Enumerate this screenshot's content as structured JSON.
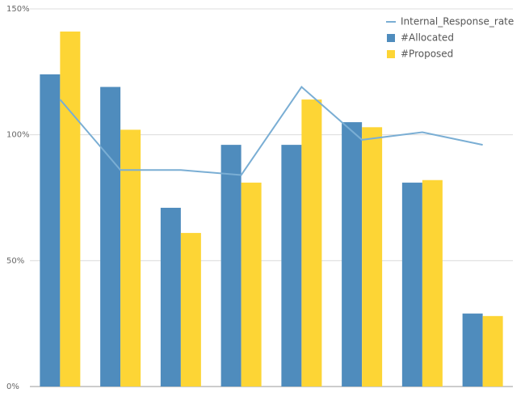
{
  "chart_data": {
    "type": "bar",
    "categories": [
      null,
      null,
      null,
      null,
      null,
      null,
      null,
      null
    ],
    "series": [
      {
        "name": "Internal_Response_rate",
        "type": "line",
        "color": "#7aaed4",
        "values": [
          114,
          86,
          86,
          84,
          119,
          98,
          101,
          96
        ]
      },
      {
        "name": "#Allocated",
        "color": "#4f8cbd",
        "values": [
          124,
          119,
          71,
          96,
          96,
          105,
          81,
          29
        ]
      },
      {
        "name": "#Proposed",
        "color": "#fdd535",
        "values": [
          141,
          102,
          61,
          81,
          114,
          103,
          82,
          28
        ]
      }
    ],
    "ylim": [
      0,
      150
    ],
    "yticks": [
      {
        "value": 0,
        "label": "0%"
      },
      {
        "value": 50,
        "label": "50%"
      },
      {
        "value": 100,
        "label": "100%"
      },
      {
        "value": 150,
        "label": "150%"
      }
    ],
    "grid": true,
    "legend": "top-right"
  }
}
